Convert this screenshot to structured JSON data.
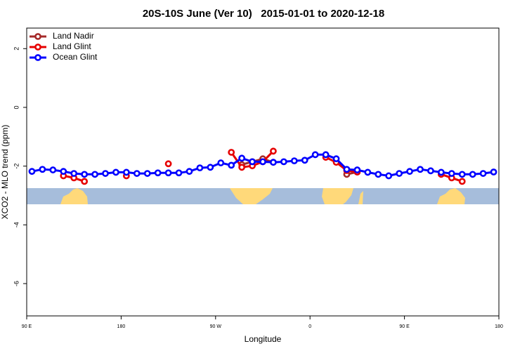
{
  "chart_data": {
    "type": "line",
    "title": "20S-10S June (Ver 10)   2015-01-01 to 2020-12-18",
    "x_label": "Longitude",
    "y_label": "XCO2 - MLO trend (ppm)",
    "x": [
      95,
      105,
      115,
      125,
      135,
      145,
      155,
      165,
      175,
      185,
      195,
      205,
      215,
      225,
      235,
      245,
      255,
      265,
      275,
      285,
      295,
      305,
      315,
      325,
      335,
      345,
      355,
      365,
      375,
      385,
      395,
      405,
      415,
      425,
      435,
      445,
      455,
      465,
      475,
      485,
      495,
      505,
      515,
      525,
      535
    ],
    "series": [
      {
        "name": "Land Nadir",
        "color": "#a52a2a",
        "values": [
          null,
          null,
          null,
          null,
          null,
          null,
          null,
          null,
          null,
          null,
          null,
          null,
          null,
          null,
          null,
          null,
          null,
          null,
          null,
          null,
          -1.95,
          -1.85,
          -1.75,
          -1.87,
          null,
          null,
          null,
          null,
          null,
          null,
          -2.28,
          -2.2,
          null,
          null,
          null,
          null,
          null,
          null,
          null,
          null,
          null,
          null,
          null,
          null,
          null
        ]
      },
      {
        "name": "Land Glint",
        "color": "#e60000",
        "values": [
          null,
          null,
          null,
          -2.33,
          -2.4,
          -2.52,
          null,
          null,
          null,
          -2.33,
          null,
          null,
          null,
          -1.92,
          null,
          null,
          null,
          null,
          null,
          -1.53,
          -2.04,
          -1.99,
          -1.85,
          -1.49,
          null,
          null,
          null,
          null,
          -1.7,
          -1.87,
          -2.15,
          -2.2,
          null,
          null,
          null,
          null,
          null,
          null,
          null,
          -2.28,
          -2.4,
          -2.52,
          null,
          null,
          null
        ]
      },
      {
        "name": "Ocean Glint",
        "color": "#0000ff",
        "values": [
          -2.18,
          -2.11,
          -2.13,
          -2.18,
          -2.25,
          -2.28,
          -2.28,
          -2.25,
          -2.21,
          -2.21,
          -2.25,
          -2.25,
          -2.23,
          -2.23,
          -2.23,
          -2.18,
          -2.06,
          -2.04,
          -1.89,
          -1.97,
          -1.73,
          -1.85,
          -1.85,
          -1.87,
          -1.85,
          -1.82,
          -1.8,
          -1.61,
          -1.61,
          -1.75,
          -2.11,
          -2.13,
          -2.21,
          -2.28,
          -2.33,
          -2.25,
          -2.18,
          -2.11,
          -2.16,
          -2.21,
          -2.25,
          -2.28,
          -2.28,
          -2.25,
          -2.2
        ]
      }
    ],
    "xlim": [
      90,
      540
    ],
    "xticks": [
      {
        "value": 90,
        "label": "90 E"
      },
      180,
      {
        "value": 270,
        "label": "90 W"
      },
      {
        "value": 360,
        "label": "0"
      },
      {
        "value": 450,
        "label": "90 E"
      },
      {
        "value": 540,
        "label": "180"
      }
    ],
    "ylim": [
      -7.1,
      2.7
    ],
    "yticks": [
      2,
      0,
      -2,
      -4,
      -6
    ],
    "grid": false,
    "legend": "upper left"
  }
}
